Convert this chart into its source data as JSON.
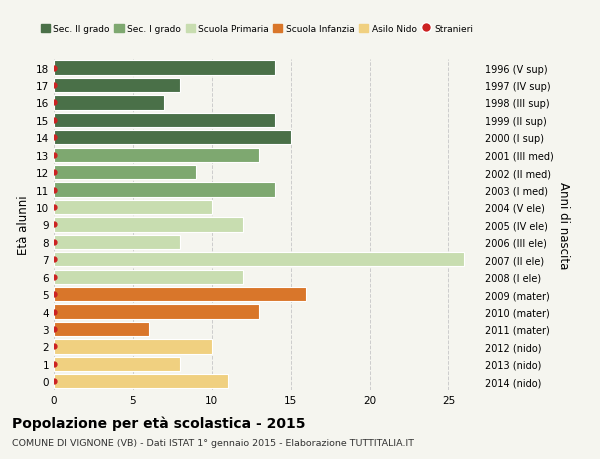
{
  "ages": [
    18,
    17,
    16,
    15,
    14,
    13,
    12,
    11,
    10,
    9,
    8,
    7,
    6,
    5,
    4,
    3,
    2,
    1,
    0
  ],
  "values": [
    14,
    8,
    7,
    14,
    15,
    13,
    9,
    14,
    10,
    12,
    8,
    26,
    12,
    16,
    13,
    6,
    10,
    8,
    11
  ],
  "right_labels": [
    "1996 (V sup)",
    "1997 (IV sup)",
    "1998 (III sup)",
    "1999 (II sup)",
    "2000 (I sup)",
    "2001 (III med)",
    "2002 (II med)",
    "2003 (I med)",
    "2004 (V ele)",
    "2005 (IV ele)",
    "2006 (III ele)",
    "2007 (II ele)",
    "2008 (I ele)",
    "2009 (mater)",
    "2010 (mater)",
    "2011 (mater)",
    "2012 (nido)",
    "2013 (nido)",
    "2014 (nido)"
  ],
  "bar_colors": [
    "#4a7048",
    "#4a7048",
    "#4a7048",
    "#4a7048",
    "#4a7048",
    "#7ea870",
    "#7ea870",
    "#7ea870",
    "#c8ddb0",
    "#c8ddb0",
    "#c8ddb0",
    "#c8ddb0",
    "#c8ddb0",
    "#d9762a",
    "#d9762a",
    "#d9762a",
    "#f0d080",
    "#f0d080",
    "#f0d080"
  ],
  "legend_labels": [
    "Sec. II grado",
    "Sec. I grado",
    "Scuola Primaria",
    "Scuola Infanzia",
    "Asilo Nido",
    "Stranieri"
  ],
  "legend_colors": [
    "#4a7048",
    "#7ea870",
    "#c8ddb0",
    "#d9762a",
    "#f0d080",
    "#cc2222"
  ],
  "ylabel": "Età alunni",
  "ylabel_right": "Anni di nascita",
  "title": "Popolazione per età scolastica - 2015",
  "subtitle": "COMUNE DI VIGNONE (VB) - Dati ISTAT 1° gennaio 2015 - Elaborazione TUTTITALIA.IT",
  "xlim": [
    0,
    27
  ],
  "xticks": [
    0,
    5,
    10,
    15,
    20,
    25
  ],
  "ylim": [
    -0.5,
    18.5
  ],
  "bg_color": "#f5f5ef",
  "grid_color": "#cccccc",
  "bar_height": 0.82,
  "stranieri_dot_color": "#cc2222"
}
